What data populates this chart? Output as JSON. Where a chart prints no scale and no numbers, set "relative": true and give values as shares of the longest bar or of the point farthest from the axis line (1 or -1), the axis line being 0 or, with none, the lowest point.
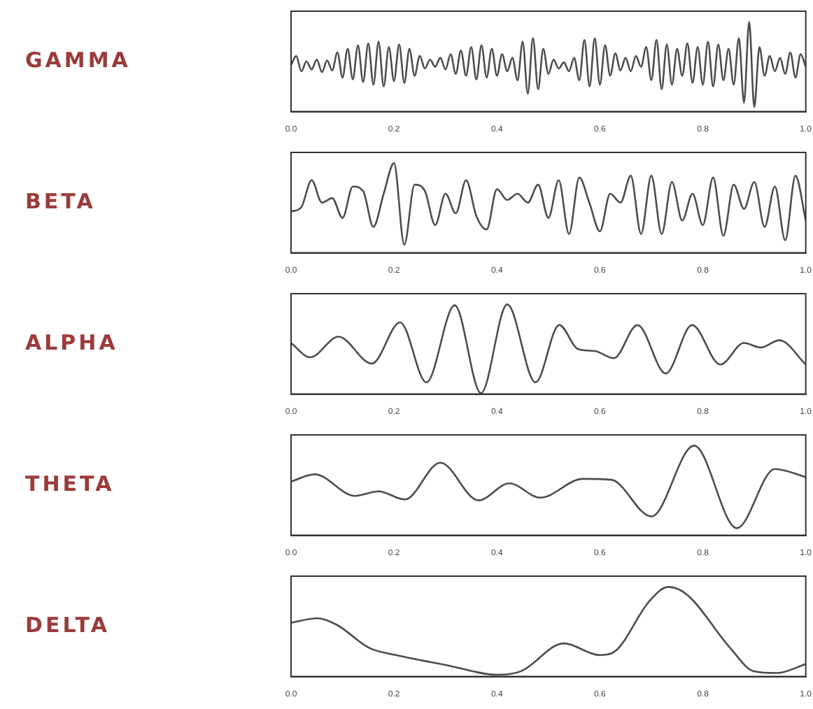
{
  "chart_data": [
    {
      "type": "line",
      "ylabel": "GAMMA",
      "relative": true,
      "color": "#4d4d4d",
      "tick_labels": "x",
      "xlim": [
        0,
        1
      ],
      "xticks": [
        {
          "value": 0,
          "label": "0.0"
        },
        {
          "value": 0.2,
          "label": "0.2"
        },
        {
          "value": 0.4,
          "label": "0.4"
        },
        {
          "value": 0.6,
          "label": "0.6"
        },
        {
          "value": 0.8,
          "label": "0.8"
        },
        {
          "value": 1,
          "label": "1.0"
        }
      ],
      "x": [
        0,
        0.01,
        0.02,
        0.03,
        0.04,
        0.05,
        0.06,
        0.07,
        0.08,
        0.09,
        0.1,
        0.11,
        0.12,
        0.13,
        0.14,
        0.15,
        0.16,
        0.17,
        0.18,
        0.19,
        0.2,
        0.21,
        0.22,
        0.23,
        0.24,
        0.25,
        0.26,
        0.27,
        0.28,
        0.29,
        0.3,
        0.31,
        0.32,
        0.33,
        0.34,
        0.35,
        0.36,
        0.37,
        0.38,
        0.39,
        0.4,
        0.41,
        0.42,
        0.43,
        0.44,
        0.45,
        0.46,
        0.47,
        0.48,
        0.49,
        0.5,
        0.51,
        0.52,
        0.53,
        0.54,
        0.55,
        0.56,
        0.57,
        0.58,
        0.59,
        0.6,
        0.61,
        0.62,
        0.63,
        0.64,
        0.65,
        0.66,
        0.67,
        0.68,
        0.69,
        0.7,
        0.71,
        0.72,
        0.73,
        0.74,
        0.75,
        0.76,
        0.77,
        0.78,
        0.79,
        0.8,
        0.81,
        0.82,
        0.83,
        0.84,
        0.85,
        0.86,
        0.87,
        0.88,
        0.89,
        0.9,
        0.91,
        0.92,
        0.93,
        0.94,
        0.95,
        0.96,
        0.97,
        0.98,
        0.99,
        1
      ],
      "values": [
        0.52,
        0.62,
        0.45,
        0.56,
        0.47,
        0.58,
        0.44,
        0.57,
        0.46,
        0.66,
        0.38,
        0.7,
        0.36,
        0.74,
        0.33,
        0.76,
        0.3,
        0.78,
        0.28,
        0.72,
        0.34,
        0.75,
        0.32,
        0.7,
        0.4,
        0.62,
        0.48,
        0.58,
        0.5,
        0.6,
        0.47,
        0.64,
        0.42,
        0.68,
        0.4,
        0.72,
        0.36,
        0.74,
        0.38,
        0.7,
        0.4,
        0.64,
        0.45,
        0.6,
        0.35,
        0.78,
        0.2,
        0.82,
        0.25,
        0.7,
        0.42,
        0.58,
        0.48,
        0.55,
        0.45,
        0.6,
        0.35,
        0.8,
        0.28,
        0.82,
        0.3,
        0.74,
        0.4,
        0.65,
        0.46,
        0.6,
        0.45,
        0.62,
        0.5,
        0.72,
        0.35,
        0.8,
        0.25,
        0.75,
        0.3,
        0.7,
        0.4,
        0.76,
        0.32,
        0.72,
        0.3,
        0.78,
        0.28,
        0.75,
        0.35,
        0.7,
        0.3,
        0.82,
        0.1,
        1.0,
        0.05,
        0.72,
        0.4,
        0.62,
        0.45,
        0.6,
        0.42,
        0.66,
        0.38,
        0.64,
        0.5
      ]
    },
    {
      "type": "line",
      "ylabel": "BETA",
      "relative": true,
      "color": "#4d4d4d",
      "tick_labels": "x",
      "xlim": [
        0,
        1
      ],
      "xticks": [
        {
          "value": 0,
          "label": "0.0"
        },
        {
          "value": 0.2,
          "label": "0.2"
        },
        {
          "value": 0.4,
          "label": "0.4"
        },
        {
          "value": 0.6,
          "label": "0.6"
        },
        {
          "value": 0.8,
          "label": "0.8"
        },
        {
          "value": 1,
          "label": "1.0"
        }
      ],
      "x": [
        0,
        0.02,
        0.04,
        0.06,
        0.08,
        0.1,
        0.12,
        0.14,
        0.16,
        0.18,
        0.2,
        0.22,
        0.24,
        0.26,
        0.28,
        0.3,
        0.32,
        0.34,
        0.36,
        0.38,
        0.4,
        0.42,
        0.44,
        0.46,
        0.48,
        0.5,
        0.52,
        0.54,
        0.56,
        0.58,
        0.6,
        0.62,
        0.64,
        0.66,
        0.68,
        0.7,
        0.72,
        0.74,
        0.76,
        0.78,
        0.8,
        0.82,
        0.84,
        0.86,
        0.88,
        0.9,
        0.92,
        0.94,
        0.96,
        0.98,
        1
      ],
      "values": [
        0.46,
        0.51,
        0.81,
        0.56,
        0.61,
        0.39,
        0.74,
        0.69,
        0.29,
        0.66,
        1.0,
        0.09,
        0.76,
        0.69,
        0.31,
        0.66,
        0.44,
        0.81,
        0.41,
        0.26,
        0.71,
        0.59,
        0.66,
        0.56,
        0.76,
        0.39,
        0.81,
        0.21,
        0.84,
        0.55,
        0.24,
        0.66,
        0.56,
        0.86,
        0.21,
        0.86,
        0.21,
        0.79,
        0.36,
        0.66,
        0.31,
        0.84,
        0.19,
        0.76,
        0.49,
        0.79,
        0.29,
        0.74,
        0.14,
        0.86,
        0.36
      ]
    },
    {
      "type": "line",
      "ylabel": "ALPHA",
      "relative": true,
      "color": "#4d4d4d",
      "tick_labels": "x",
      "xlim": [
        0,
        1
      ],
      "xticks": [
        {
          "value": 0,
          "label": "0.0"
        },
        {
          "value": 0.2,
          "label": "0.2"
        },
        {
          "value": 0.4,
          "label": "0.4"
        },
        {
          "value": 0.6,
          "label": "0.6"
        },
        {
          "value": 0.8,
          "label": "0.8"
        },
        {
          "value": 1,
          "label": "1.0"
        }
      ],
      "x": [
        0,
        0.037,
        0.092,
        0.157,
        0.212,
        0.263,
        0.318,
        0.369,
        0.42,
        0.475,
        0.521,
        0.558,
        0.59,
        0.627,
        0.673,
        0.728,
        0.779,
        0.834,
        0.88,
        0.912,
        0.949,
        1
      ],
      "values": [
        0.57,
        0.41,
        0.64,
        0.34,
        0.8,
        0.13,
        0.99,
        0.01,
        1.0,
        0.13,
        0.77,
        0.5,
        0.48,
        0.4,
        0.77,
        0.23,
        0.77,
        0.33,
        0.57,
        0.52,
        0.6,
        0.33
      ]
    },
    {
      "type": "line",
      "ylabel": "THETA",
      "relative": true,
      "color": "#4d4d4d",
      "tick_labels": "x",
      "xlim": [
        0,
        1
      ],
      "xticks": [
        {
          "value": 0,
          "label": "0.0"
        },
        {
          "value": 0.2,
          "label": "0.2"
        },
        {
          "value": 0.4,
          "label": "0.4"
        },
        {
          "value": 0.6,
          "label": "0.6"
        },
        {
          "value": 0.8,
          "label": "0.8"
        },
        {
          "value": 1,
          "label": "1.0"
        }
      ],
      "x": [
        0,
        0.046,
        0.124,
        0.17,
        0.221,
        0.29,
        0.364,
        0.424,
        0.484,
        0.567,
        0.622,
        0.7,
        0.783,
        0.866,
        0.94,
        1
      ],
      "values": [
        0.6,
        0.68,
        0.44,
        0.49,
        0.4,
        0.81,
        0.39,
        0.58,
        0.42,
        0.63,
        0.62,
        0.21,
        1.0,
        0.08,
        0.74,
        0.65
      ]
    },
    {
      "type": "line",
      "ylabel": "DELTA",
      "relative": true,
      "color": "#4d4d4d",
      "tick_labels": "x",
      "xlim": [
        0,
        1
      ],
      "xticks": [
        {
          "value": 0,
          "label": "0.0"
        },
        {
          "value": 0.2,
          "label": "0.2"
        },
        {
          "value": 0.4,
          "label": "0.4"
        },
        {
          "value": 0.6,
          "label": "0.6"
        },
        {
          "value": 0.8,
          "label": "0.8"
        },
        {
          "value": 1,
          "label": "1.0"
        }
      ],
      "x": [
        0,
        0.051,
        0.088,
        0.152,
        0.203,
        0.3,
        0.401,
        0.447,
        0.53,
        0.599,
        0.631,
        0.696,
        0.733,
        0.77,
        0.853,
        0.899,
        0.945,
        1
      ],
      "values": [
        0.6,
        0.65,
        0.58,
        0.32,
        0.24,
        0.13,
        0.02,
        0.06,
        0.37,
        0.24,
        0.29,
        0.84,
        1.0,
        0.91,
        0.32,
        0.06,
        0.04,
        0.14
      ]
    }
  ]
}
